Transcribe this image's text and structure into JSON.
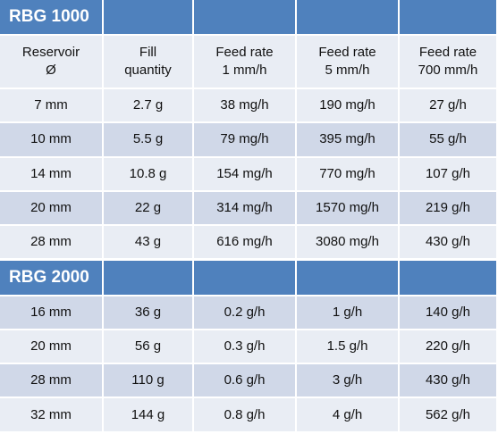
{
  "sections": [
    {
      "title": "RBG 1000",
      "columns": [
        [
          "Reservoir",
          "Ø"
        ],
        [
          "Fill",
          "quantity"
        ],
        [
          "Feed rate",
          "1 mm/h"
        ],
        [
          "Feed rate",
          "5 mm/h"
        ],
        [
          "Feed rate",
          "700 mm/h"
        ]
      ],
      "rows": [
        [
          "7 mm",
          "2.7 g",
          "38 mg/h",
          "190 mg/h",
          "27 g/h"
        ],
        [
          "10 mm",
          "5.5 g",
          "79 mg/h",
          "395 mg/h",
          "55 g/h"
        ],
        [
          "14 mm",
          "10.8 g",
          "154 mg/h",
          "770 mg/h",
          "107 g/h"
        ],
        [
          "20 mm",
          "22 g",
          "314 mg/h",
          "1570 mg/h",
          "219 g/h"
        ],
        [
          "28 mm",
          "43 g",
          "616 mg/h",
          "3080 mg/h",
          "430 g/h"
        ]
      ]
    },
    {
      "title": "RBG 2000",
      "rows": [
        [
          "16 mm",
          "36 g",
          "0.2 g/h",
          "1 g/h",
          "140 g/h"
        ],
        [
          "20 mm",
          "56 g",
          "0.3 g/h",
          "1.5 g/h",
          "220 g/h"
        ],
        [
          "28 mm",
          "110 g",
          "0.6 g/h",
          "3 g/h",
          "430 g/h"
        ],
        [
          "32 mm",
          "144 g",
          "0.8 g/h",
          "4 g/h",
          "562 g/h"
        ]
      ]
    }
  ]
}
